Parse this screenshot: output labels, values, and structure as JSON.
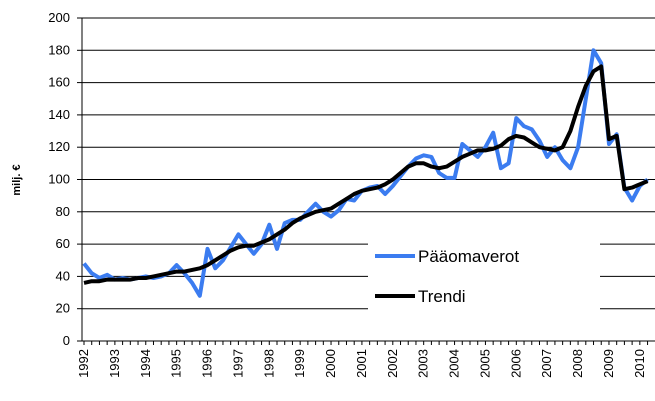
{
  "chart_data": {
    "type": "line",
    "ylabel": "milj. €",
    "categories": [
      "1992",
      null,
      null,
      null,
      "1993",
      null,
      null,
      null,
      "1994",
      null,
      null,
      null,
      "1995",
      null,
      null,
      null,
      "1996",
      null,
      null,
      null,
      "1997",
      null,
      null,
      null,
      "1998",
      null,
      null,
      null,
      "1999",
      null,
      null,
      null,
      "2000",
      null,
      null,
      null,
      "2001",
      null,
      null,
      null,
      "2002",
      null,
      null,
      null,
      "2003",
      null,
      null,
      null,
      "2004",
      null,
      null,
      null,
      "2005",
      null,
      null,
      null,
      "2006",
      null,
      null,
      null,
      "2007",
      null,
      null,
      null,
      "2008",
      null,
      null,
      null,
      "2009",
      null,
      null,
      null,
      "2010",
      null
    ],
    "series": [
      {
        "name": "Pääomaverot",
        "color": "#3b7cf0",
        "width": 4,
        "values": [
          48,
          42,
          39,
          41,
          38,
          39,
          38,
          39,
          40,
          39,
          40,
          42,
          47,
          42,
          36,
          28,
          57,
          45,
          50,
          58,
          66,
          60,
          54,
          60,
          72,
          57,
          73,
          75,
          75,
          80,
          85,
          80,
          77,
          81,
          88,
          87,
          93,
          95,
          96,
          91,
          96,
          102,
          108,
          113,
          115,
          114,
          104,
          101,
          101,
          122,
          118,
          114,
          120,
          129,
          107,
          110,
          138,
          133,
          131,
          124,
          114,
          120,
          112,
          107,
          120,
          150,
          180,
          172,
          122,
          128,
          95,
          87,
          96,
          100
        ]
      },
      {
        "name": "Trendi",
        "color": "#000000",
        "width": 4,
        "values": [
          36,
          37,
          37,
          38,
          38,
          38,
          38,
          39,
          39,
          40,
          41,
          42,
          43,
          43,
          44,
          45,
          47,
          50,
          53,
          56,
          58,
          59,
          59,
          61,
          63,
          66,
          69,
          73,
          76,
          78,
          80,
          81,
          82,
          85,
          88,
          91,
          93,
          94,
          95,
          97,
          100,
          104,
          108,
          110,
          110,
          108,
          107,
          108,
          111,
          114,
          116,
          118,
          118,
          119,
          121,
          125,
          127,
          126,
          123,
          120,
          119,
          118,
          120,
          130,
          145,
          158,
          167,
          170,
          125,
          127,
          94,
          95,
          97,
          99
        ]
      }
    ],
    "ylim": [
      0,
      200
    ],
    "yticks": [
      0,
      20,
      40,
      60,
      80,
      100,
      120,
      140,
      160,
      180,
      200
    ],
    "grid": true
  }
}
